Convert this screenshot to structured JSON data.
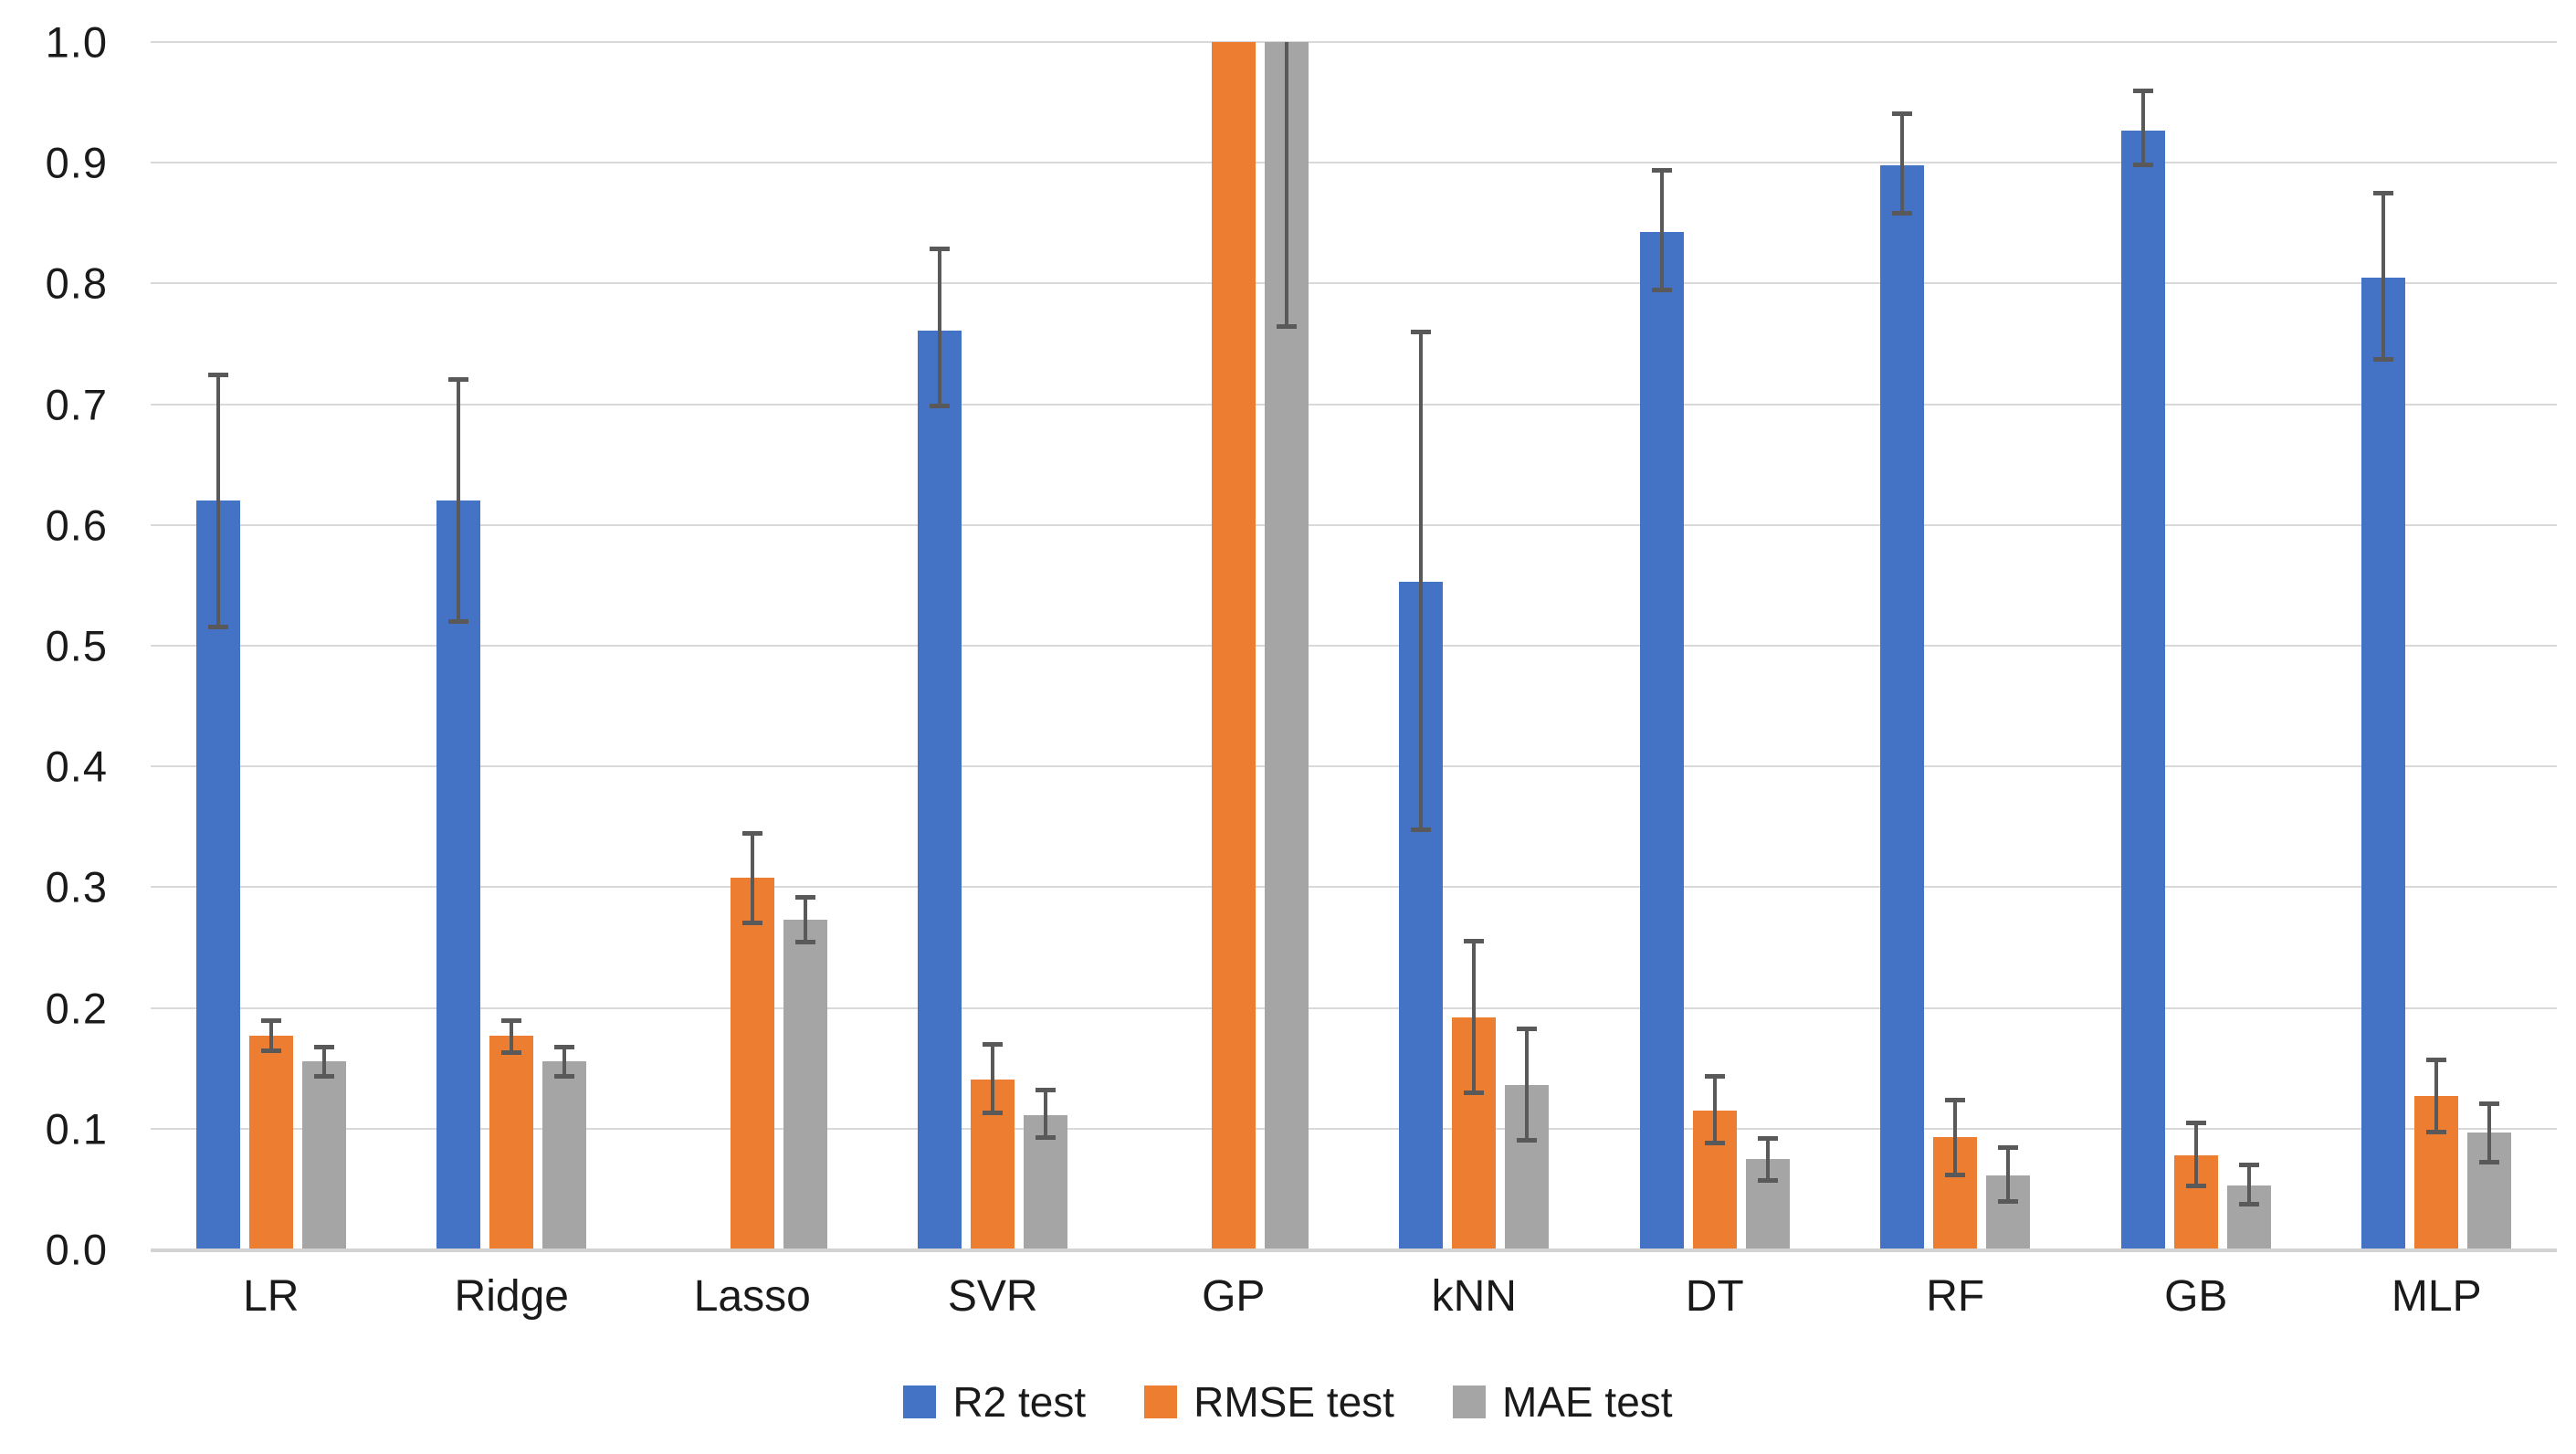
{
  "chart_data": {
    "type": "bar",
    "title": "",
    "xlabel": "",
    "ylabel": "",
    "ylim": [
      0.0,
      1.0
    ],
    "grid": true,
    "legend_position": "bottom",
    "y_ticks": [
      "1.0",
      "0.9",
      "0.8",
      "0.7",
      "0.6",
      "0.5",
      "0.4",
      "0.3",
      "0.2",
      "0.1",
      "0.0"
    ],
    "categories": [
      "LR",
      "Ridge",
      "Lasso",
      "SVR",
      "GP",
      "kNN",
      "DT",
      "RF",
      "GB",
      "MLP"
    ],
    "series": [
      {
        "name": "R2 test",
        "color": "#4472C4",
        "values": [
          0.62,
          0.62,
          null,
          0.761,
          null,
          0.553,
          0.843,
          0.898,
          0.927,
          0.805
        ],
        "err_lo": [
          0.515,
          0.52,
          null,
          0.698,
          null,
          0.347,
          0.794,
          0.858,
          0.898,
          0.737
        ],
        "err_hi": [
          0.725,
          0.721,
          null,
          0.829,
          null,
          0.76,
          0.894,
          0.941,
          0.96,
          0.875
        ],
        "note": "no bar rendered for Lasso and GP"
      },
      {
        "name": "RMSE test",
        "color": "#ED7D31",
        "values": [
          0.177,
          0.177,
          0.308,
          0.141,
          1.0,
          0.192,
          0.115,
          0.093,
          0.078,
          0.127
        ],
        "err_lo": [
          0.164,
          0.163,
          0.27,
          0.113,
          null,
          0.129,
          0.088,
          0.061,
          0.052,
          0.097
        ],
        "err_hi": [
          0.19,
          0.19,
          0.345,
          0.17,
          null,
          0.256,
          0.144,
          0.124,
          0.105,
          0.157
        ],
        "note": "GP bar clipped at axis maximum 1.0"
      },
      {
        "name": "MAE test",
        "color": "#A5A5A5",
        "values": [
          0.156,
          0.156,
          0.273,
          0.111,
          1.0,
          0.136,
          0.075,
          0.061,
          0.053,
          0.097
        ],
        "err_lo": [
          0.143,
          0.143,
          0.254,
          0.092,
          0.764,
          0.09,
          0.057,
          0.039,
          0.037,
          0.072
        ],
        "err_hi": [
          0.168,
          0.168,
          0.292,
          0.132,
          null,
          0.183,
          0.092,
          0.085,
          0.07,
          0.121
        ],
        "note": "GP bar clipped at axis maximum 1.0; only lower error whisker visible"
      }
    ],
    "colors": {
      "background": "#FFFFFF",
      "gridline": "#D9D9D9",
      "axis_line": "#D3D3D3",
      "error_bar": "#595959",
      "text": "#1A1A1A"
    }
  }
}
